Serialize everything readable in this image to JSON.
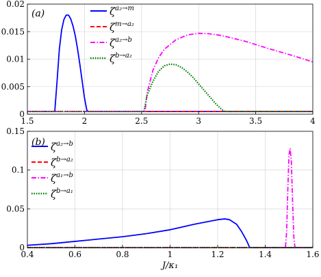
{
  "chart_data": [
    {
      "type": "line",
      "panel_label": "(a)",
      "xlim": [
        1.5,
        4
      ],
      "ylim": [
        0,
        0.02
      ],
      "xticks": [
        "1.5",
        "2",
        "2.5",
        "3",
        "3.5",
        "4"
      ],
      "yticks": [
        "0",
        "0.005",
        "0.01",
        "0.015",
        "0.02"
      ],
      "grid": true,
      "legend_position": "top-center",
      "series": [
        {
          "name": "ζ^{a2→m}",
          "sym": "ζ",
          "sup": "a₂→m",
          "color": "#0000ff",
          "style": "solid",
          "x": [
            1.5,
            1.74,
            1.76,
            1.78,
            1.8,
            1.82,
            1.84,
            1.86,
            1.88,
            1.9,
            1.92,
            1.94,
            1.96,
            1.98,
            2.0,
            2.02,
            2.03,
            4.0
          ],
          "y": [
            0.0005,
            0.0005,
            0.006,
            0.0118,
            0.0153,
            0.0172,
            0.018,
            0.018,
            0.0173,
            0.016,
            0.0142,
            0.0118,
            0.009,
            0.006,
            0.003,
            0.0008,
            0.0005,
            0.0005
          ]
        },
        {
          "name": "ζ^{m→a2}",
          "sym": "ζ",
          "sup": "m→a₂",
          "color": "#ff0000",
          "style": "dashed",
          "x": [
            1.5,
            4.0
          ],
          "y": [
            0.0005,
            0.0005
          ]
        },
        {
          "name": "ζ^{a2→b}",
          "sym": "ζ",
          "sup": "a₂→b",
          "color": "#ff00ff",
          "style": "dashdot",
          "x": [
            1.5,
            2.53,
            2.55,
            2.6,
            2.65,
            2.7,
            2.8,
            2.9,
            3.0,
            3.1,
            3.2,
            3.4,
            3.6,
            3.8,
            4.0
          ],
          "y": [
            0.0005,
            0.0005,
            0.004,
            0.008,
            0.0103,
            0.0118,
            0.0135,
            0.0144,
            0.0147,
            0.0146,
            0.0143,
            0.0133,
            0.012,
            0.0108,
            0.0095
          ]
        },
        {
          "name": "ζ^{b→a2}",
          "sym": "ζ",
          "sup": "b→a₂",
          "color": "#008000",
          "style": "dotted",
          "x": [
            1.5,
            2.52,
            2.55,
            2.6,
            2.65,
            2.7,
            2.75,
            2.8,
            2.85,
            2.9,
            2.95,
            3.0,
            3.05,
            3.1,
            3.15,
            3.2,
            3.23,
            4.0
          ],
          "y": [
            0.0005,
            0.0005,
            0.0035,
            0.006,
            0.0078,
            0.0088,
            0.0091,
            0.009,
            0.0085,
            0.0077,
            0.0067,
            0.0055,
            0.0043,
            0.0031,
            0.0019,
            0.0009,
            0.0005,
            0.0005
          ]
        }
      ]
    },
    {
      "type": "line",
      "panel_label": "(b)",
      "xlim": [
        0.4,
        1.6
      ],
      "ylim": [
        0,
        0.15
      ],
      "xticks": [
        "0.4",
        "0.6",
        "0.8",
        "1",
        "1.2",
        "1.4",
        "1.6"
      ],
      "yticks": [
        "0",
        "0.05",
        "0.1",
        "0.15"
      ],
      "xlabel": "J/κ₁",
      "grid": true,
      "legend_position": "top-left",
      "series": [
        {
          "name": "ζ^{a2→b}",
          "sym": "ζ",
          "sup": "a₂→b",
          "color": "#0000ff",
          "style": "solid",
          "x": [
            0.4,
            0.5,
            0.6,
            0.7,
            0.8,
            0.9,
            1.0,
            1.1,
            1.15,
            1.2,
            1.23,
            1.25,
            1.28,
            1.3,
            1.32,
            1.335,
            1.6
          ],
          "y": [
            0.003,
            0.005,
            0.008,
            0.011,
            0.014,
            0.018,
            0.023,
            0.03,
            0.033,
            0.036,
            0.037,
            0.036,
            0.03,
            0.021,
            0.01,
            0.0,
            0.0
          ]
        },
        {
          "name": "ζ^{b→a2}",
          "sym": "ζ",
          "sup": "b→a₂",
          "color": "#ff0000",
          "style": "dashed",
          "x": [
            0.4,
            1.6
          ],
          "y": [
            0.0,
            0.0
          ]
        },
        {
          "name": "ζ^{a1→b}",
          "sym": "ζ",
          "sup": "a₁→b",
          "color": "#ff00ff",
          "style": "dashdot",
          "x": [
            0.4,
            1.485,
            1.49,
            1.495,
            1.5,
            1.505,
            1.51,
            1.515,
            1.52,
            1.525,
            1.6
          ],
          "y": [
            0.0,
            0.0,
            0.02,
            0.075,
            0.12,
            0.128,
            0.11,
            0.06,
            0.015,
            0.0,
            0.0
          ]
        },
        {
          "name": "ζ^{b→a1}",
          "sym": "ζ",
          "sup": "b→a₁",
          "color": "#008000",
          "style": "dotted",
          "x": [
            0.4,
            1.6
          ],
          "y": [
            0.0,
            0.0
          ]
        }
      ]
    }
  ]
}
